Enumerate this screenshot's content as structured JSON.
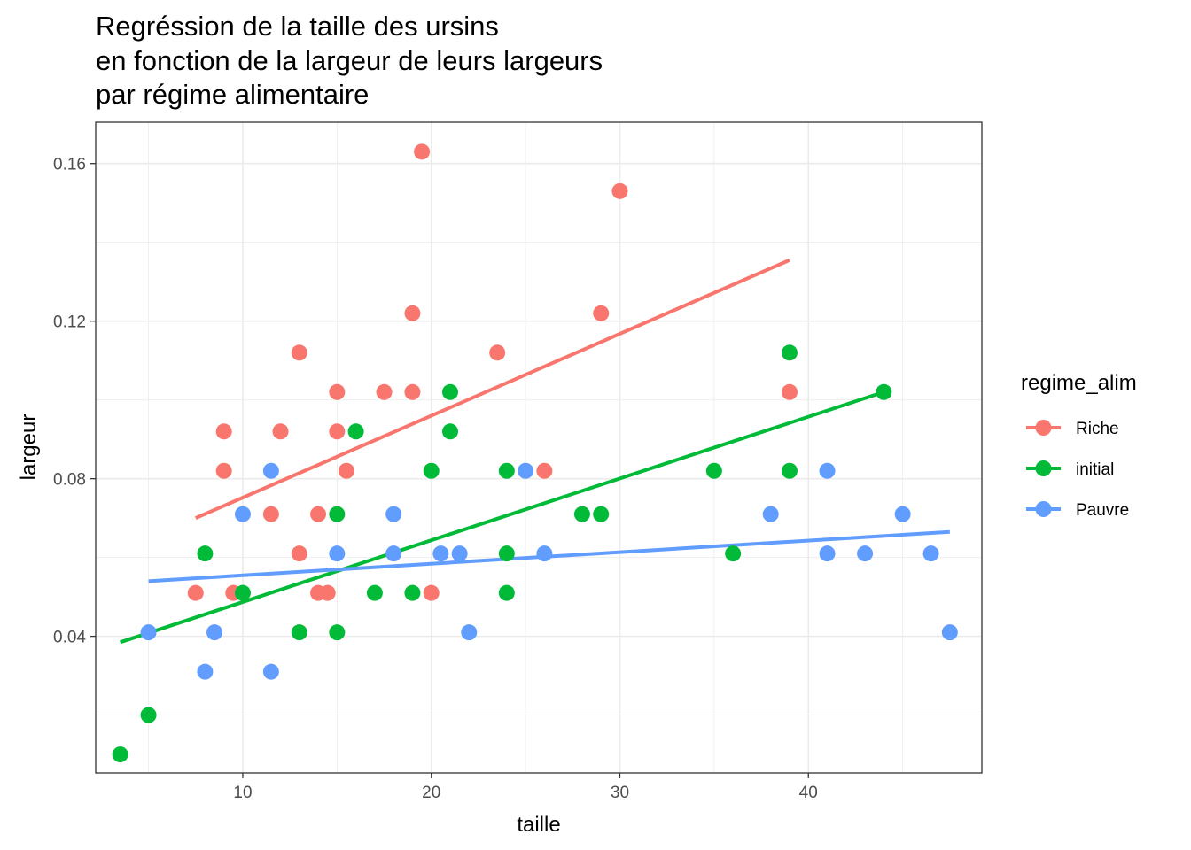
{
  "chart_data": {
    "type": "scatter",
    "title_lines": [
      "Regréssion de la taille des ursins",
      "en fonction de la largeur de leurs largeurs",
      "par régime alimentaire"
    ],
    "xlabel": "taille",
    "ylabel": "largeur",
    "xlim": [
      2.2,
      49.2
    ],
    "ylim": [
      0.0053,
      0.1705
    ],
    "x_ticks": [
      10,
      20,
      30,
      40
    ],
    "x_tick_labels": [
      "10",
      "20",
      "30",
      "40"
    ],
    "x_minor_ticks": [
      5,
      15,
      25,
      35,
      45
    ],
    "y_ticks": [
      0.04,
      0.08,
      0.12,
      0.16
    ],
    "y_tick_labels": [
      "0.04",
      "0.08",
      "0.12",
      "0.16"
    ],
    "y_minor_ticks": [
      0.02,
      0.06,
      0.1,
      0.14
    ],
    "grid": true,
    "legend": {
      "title": "regime_alim",
      "placement": "right"
    },
    "series": [
      {
        "name": "Riche",
        "color": "#F8766D",
        "points": [
          [
            7.5,
            0.051
          ],
          [
            9,
            0.082
          ],
          [
            9,
            0.092
          ],
          [
            9.5,
            0.051
          ],
          [
            11.5,
            0.071
          ],
          [
            12,
            0.092
          ],
          [
            13,
            0.112
          ],
          [
            13,
            0.061
          ],
          [
            14,
            0.071
          ],
          [
            14,
            0.051
          ],
          [
            14.5,
            0.051
          ],
          [
            15,
            0.102
          ],
          [
            15,
            0.092
          ],
          [
            15.5,
            0.082
          ],
          [
            17.5,
            0.102
          ],
          [
            19,
            0.122
          ],
          [
            19,
            0.102
          ],
          [
            19.5,
            0.163
          ],
          [
            20,
            0.051
          ],
          [
            23.5,
            0.112
          ],
          [
            26,
            0.082
          ],
          [
            29,
            0.122
          ],
          [
            30,
            0.153
          ],
          [
            39,
            0.102
          ]
        ],
        "fit": [
          [
            7.5,
            0.07
          ],
          [
            39,
            0.1355
          ]
        ]
      },
      {
        "name": "initial",
        "color": "#00BA38",
        "points": [
          [
            3.5,
            0.01
          ],
          [
            5,
            0.02
          ],
          [
            8,
            0.061
          ],
          [
            10,
            0.051
          ],
          [
            13,
            0.041
          ],
          [
            15,
            0.071
          ],
          [
            15,
            0.041
          ],
          [
            16,
            0.092
          ],
          [
            17,
            0.051
          ],
          [
            19,
            0.051
          ],
          [
            20,
            0.082
          ],
          [
            21,
            0.102
          ],
          [
            21,
            0.092
          ],
          [
            24,
            0.082
          ],
          [
            24,
            0.061
          ],
          [
            24,
            0.051
          ],
          [
            28,
            0.071
          ],
          [
            29,
            0.071
          ],
          [
            35,
            0.082
          ],
          [
            36,
            0.061
          ],
          [
            39,
            0.112
          ],
          [
            39,
            0.082
          ],
          [
            44,
            0.102
          ]
        ],
        "fit": [
          [
            3.5,
            0.0385
          ],
          [
            44,
            0.102
          ]
        ]
      },
      {
        "name": "Pauvre",
        "color": "#619CFF",
        "points": [
          [
            5,
            0.041
          ],
          [
            8,
            0.031
          ],
          [
            8.5,
            0.041
          ],
          [
            10,
            0.071
          ],
          [
            11.5,
            0.082
          ],
          [
            11.5,
            0.031
          ],
          [
            15,
            0.061
          ],
          [
            18,
            0.071
          ],
          [
            18,
            0.061
          ],
          [
            20.5,
            0.061
          ],
          [
            21.5,
            0.061
          ],
          [
            22,
            0.041
          ],
          [
            25,
            0.082
          ],
          [
            26,
            0.061
          ],
          [
            38,
            0.071
          ],
          [
            41,
            0.082
          ],
          [
            41,
            0.061
          ],
          [
            43,
            0.061
          ],
          [
            45,
            0.071
          ],
          [
            46.5,
            0.061
          ],
          [
            47.5,
            0.041
          ]
        ],
        "fit": [
          [
            5,
            0.054
          ],
          [
            47.5,
            0.0665
          ]
        ]
      }
    ]
  }
}
